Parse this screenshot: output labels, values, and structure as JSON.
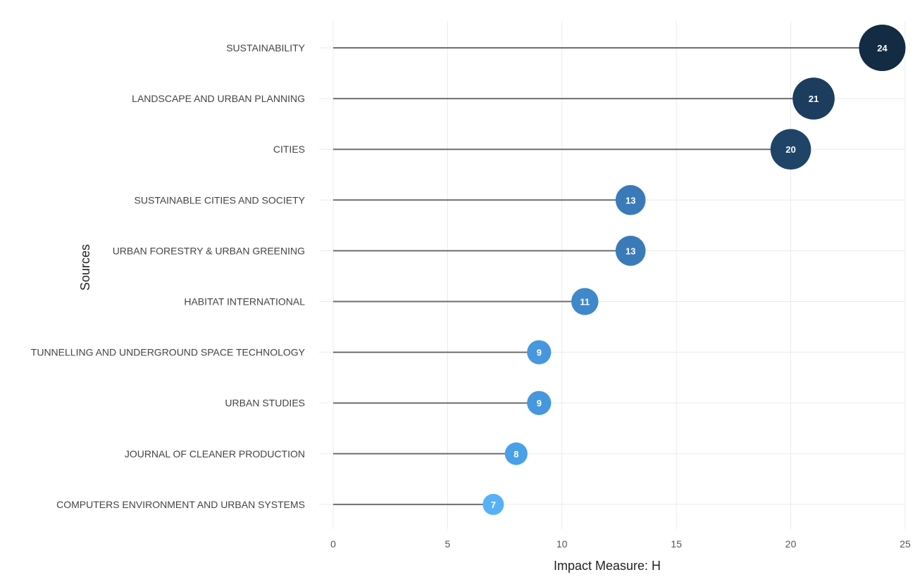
{
  "chart_data": {
    "type": "lollipop",
    "xlabel": "Impact Measure: H",
    "ylabel": "Sources",
    "xlim": [
      0,
      25
    ],
    "xticks": [
      0,
      5,
      10,
      15,
      20,
      25
    ],
    "grid": true,
    "categories": [
      "SUSTAINABILITY",
      "LANDSCAPE AND URBAN PLANNING",
      "CITIES",
      "SUSTAINABLE CITIES AND SOCIETY",
      "URBAN FORESTRY & URBAN GREENING",
      "HABITAT INTERNATIONAL",
      "TUNNELLING AND UNDERGROUND SPACE TECHNOLOGY",
      "URBAN STUDIES",
      "JOURNAL OF CLEANER PRODUCTION",
      "COMPUTERS ENVIRONMENT AND URBAN SYSTEMS"
    ],
    "values": [
      24,
      21,
      20,
      13,
      13,
      11,
      9,
      9,
      8,
      7
    ],
    "colors": [
      "#132b43",
      "#1c3d5e",
      "#1f4468",
      "#3a7ab9",
      "#3a7ab9",
      "#3f89cb",
      "#4697de",
      "#4697de",
      "#4aa0e8",
      "#56b1f7"
    ]
  }
}
